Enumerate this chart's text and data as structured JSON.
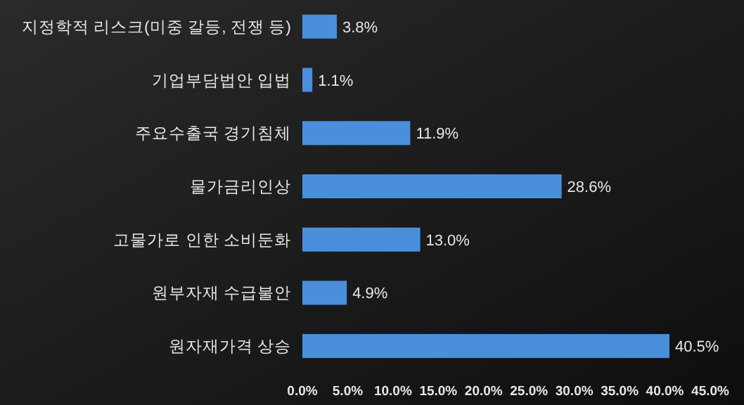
{
  "chart_data": {
    "type": "bar",
    "orientation": "horizontal",
    "categories": [
      "지정학적 리스크(미중 갈등, 전쟁 등)",
      "기업부담법안 입법",
      "주요수출국 경기침체",
      "물가금리인상",
      "고물가로 인한 소비둔화",
      "원부자재 수급불안",
      "원자재가격 상승"
    ],
    "values": [
      3.8,
      1.1,
      11.9,
      28.6,
      13.0,
      4.9,
      40.5
    ],
    "value_labels": [
      "3.8%",
      "1.1%",
      "11.9%",
      "28.6%",
      "13.0%",
      "4.9%",
      "40.5%"
    ],
    "color": "#4a8fdc",
    "xlim": [
      0,
      45
    ],
    "xticks": [
      {
        "value": 0,
        "label": "0.0%"
      },
      {
        "value": 5,
        "label": "5.0%"
      },
      {
        "value": 10,
        "label": "10.0%"
      },
      {
        "value": 15,
        "label": "15.0%"
      },
      {
        "value": 20,
        "label": "20.0%"
      },
      {
        "value": 25,
        "label": "25.0%"
      },
      {
        "value": 30,
        "label": "30.0%"
      },
      {
        "value": 35,
        "label": "35.0%"
      },
      {
        "value": 40,
        "label": "40.0%"
      },
      {
        "value": 45,
        "label": "45.0%"
      }
    ],
    "grid": false
  }
}
